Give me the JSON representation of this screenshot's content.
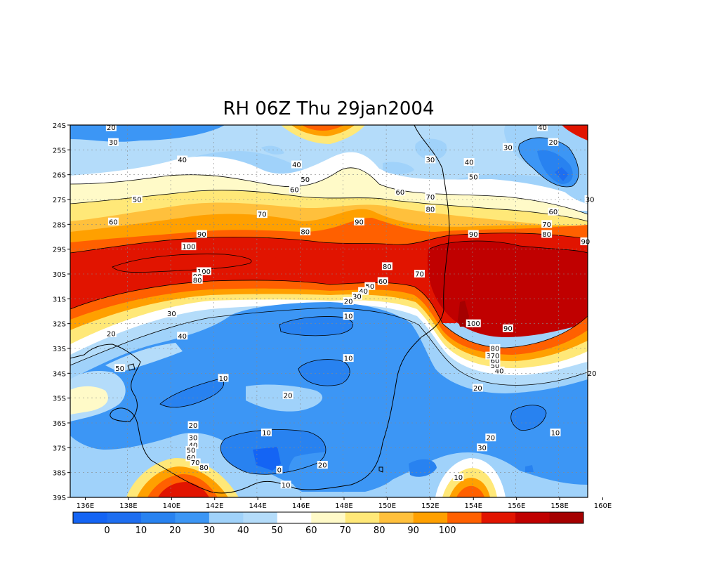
{
  "title": "RH 06Z Thu 29jan2004",
  "map": {
    "lat_labels": [
      "24S",
      "25S",
      "26S",
      "27S",
      "28S",
      "29S",
      "30S",
      "31S",
      "32S",
      "33S",
      "34S",
      "35S",
      "36S",
      "37S",
      "38S",
      "39S"
    ],
    "lon_labels": [
      "136E",
      "138E",
      "140E",
      "142E",
      "144E",
      "146E",
      "148E",
      "150E",
      "152E",
      "154E",
      "156E",
      "158E",
      "160E"
    ],
    "contour_labels": [
      {
        "text": "20",
        "lon": 137.2,
        "lat": -24.1
      },
      {
        "text": "30",
        "lon": 137.3,
        "lat": -24.7
      },
      {
        "text": "40",
        "lon": 140.5,
        "lat": -25.4
      },
      {
        "text": "40",
        "lon": 145.8,
        "lat": -25.6
      },
      {
        "text": "50",
        "lon": 146.2,
        "lat": -26.2
      },
      {
        "text": "60",
        "lon": 145.7,
        "lat": -26.6
      },
      {
        "text": "50",
        "lon": 138.4,
        "lat": -27.0
      },
      {
        "text": "60",
        "lon": 137.3,
        "lat": -27.9
      },
      {
        "text": "70",
        "lon": 144.2,
        "lat": -27.6
      },
      {
        "text": "80",
        "lon": 146.2,
        "lat": -28.3
      },
      {
        "text": "90",
        "lon": 141.4,
        "lat": -28.4
      },
      {
        "text": "90",
        "lon": 148.7,
        "lat": -27.9
      },
      {
        "text": "100",
        "lon": 140.8,
        "lat": -28.9
      },
      {
        "text": "100",
        "lon": 141.5,
        "lat": -29.9
      },
      {
        "text": "90",
        "lon": 141.2,
        "lat": -30.1
      },
      {
        "text": "80",
        "lon": 141.2,
        "lat": -30.25
      },
      {
        "text": "80",
        "lon": 150.0,
        "lat": -29.7
      },
      {
        "text": "70",
        "lon": 151.5,
        "lat": -30.0
      },
      {
        "text": "60",
        "lon": 149.8,
        "lat": -30.3
      },
      {
        "text": "50",
        "lon": 149.2,
        "lat": -30.5
      },
      {
        "text": "40",
        "lon": 148.9,
        "lat": -30.7
      },
      {
        "text": "30",
        "lon": 148.6,
        "lat": -30.9
      },
      {
        "text": "20",
        "lon": 148.2,
        "lat": -31.1
      },
      {
        "text": "30",
        "lon": 140.0,
        "lat": -31.6
      },
      {
        "text": "10",
        "lon": 148.2,
        "lat": -31.7
      },
      {
        "text": "20",
        "lon": 137.2,
        "lat": -32.4
      },
      {
        "text": "40",
        "lon": 140.5,
        "lat": -32.5
      },
      {
        "text": "10",
        "lon": 148.2,
        "lat": -33.4
      },
      {
        "text": "50",
        "lon": 137.6,
        "lat": -33.8
      },
      {
        "text": "10",
        "lon": 142.4,
        "lat": -34.2
      },
      {
        "text": "20",
        "lon": 145.4,
        "lat": -34.9
      },
      {
        "text": "20",
        "lon": 141.0,
        "lat": -36.1
      },
      {
        "text": "10",
        "lon": 144.4,
        "lat": -36.4
      },
      {
        "text": "30",
        "lon": 141.0,
        "lat": -36.6
      },
      {
        "text": "40",
        "lon": 141.0,
        "lat": -36.9
      },
      {
        "text": "50",
        "lon": 140.9,
        "lat": -37.1
      },
      {
        "text": "60",
        "lon": 140.9,
        "lat": -37.4
      },
      {
        "text": "70",
        "lon": 141.1,
        "lat": -37.6
      },
      {
        "text": "80",
        "lon": 141.5,
        "lat": -37.8
      },
      {
        "text": "0",
        "lon": 145.0,
        "lat": -37.9
      },
      {
        "text": "20",
        "lon": 147.0,
        "lat": -37.7
      },
      {
        "text": "10",
        "lon": 145.3,
        "lat": -38.5
      },
      {
        "text": "10",
        "lon": 153.3,
        "lat": -38.2
      },
      {
        "text": "20",
        "lon": 154.8,
        "lat": -36.6
      },
      {
        "text": "30",
        "lon": 154.4,
        "lat": -37.0
      },
      {
        "text": "10",
        "lon": 157.8,
        "lat": -36.4
      },
      {
        "text": "20",
        "lon": 154.2,
        "lat": -34.6
      },
      {
        "text": "30",
        "lon": 154.8,
        "lat": -33.3
      },
      {
        "text": "40",
        "lon": 155.2,
        "lat": -33.9
      },
      {
        "text": "50",
        "lon": 155.0,
        "lat": -33.7
      },
      {
        "text": "60",
        "lon": 155.0,
        "lat": -33.5
      },
      {
        "text": "70",
        "lon": 155.0,
        "lat": -33.3
      },
      {
        "text": "80",
        "lon": 155.0,
        "lat": -33.0
      },
      {
        "text": "90",
        "lon": 155.6,
        "lat": -32.2
      },
      {
        "text": "100",
        "lon": 154.0,
        "lat": -32.0
      },
      {
        "text": "20",
        "lon": 159.5,
        "lat": -34.0
      },
      {
        "text": "90",
        "lon": 154.0,
        "lat": -28.4
      },
      {
        "text": "80",
        "lon": 157.4,
        "lat": -28.4
      },
      {
        "text": "70",
        "lon": 157.4,
        "lat": -28.0
      },
      {
        "text": "60",
        "lon": 157.7,
        "lat": -27.5
      },
      {
        "text": "90",
        "lon": 159.2,
        "lat": -28.7
      },
      {
        "text": "30",
        "lon": 159.4,
        "lat": -27.0
      },
      {
        "text": "80",
        "lon": 152.0,
        "lat": -27.4
      },
      {
        "text": "70",
        "lon": 152.0,
        "lat": -26.9
      },
      {
        "text": "60",
        "lon": 150.6,
        "lat": -26.7
      },
      {
        "text": "50",
        "lon": 154.0,
        "lat": -26.1
      },
      {
        "text": "40",
        "lon": 153.8,
        "lat": -25.5
      },
      {
        "text": "30",
        "lon": 152.0,
        "lat": -25.4
      },
      {
        "text": "30",
        "lon": 155.6,
        "lat": -24.9
      },
      {
        "text": "20",
        "lon": 157.7,
        "lat": -24.7
      },
      {
        "text": "40",
        "lon": 157.2,
        "lat": -24.1
      }
    ]
  },
  "colorbar": {
    "colors": [
      "#1464f4",
      "#1e6ef0",
      "#2882f0",
      "#3c96f5",
      "#a0d2fa",
      "#b4dcfa",
      "#ffffff",
      "#fffac8",
      "#ffe878",
      "#ffc03c",
      "#ffa000",
      "#ff6000",
      "#e11400",
      "#c00000",
      "#a50000"
    ],
    "labels": [
      "0",
      "10",
      "20",
      "30",
      "40",
      "50",
      "60",
      "70",
      "80",
      "90",
      "100"
    ]
  }
}
